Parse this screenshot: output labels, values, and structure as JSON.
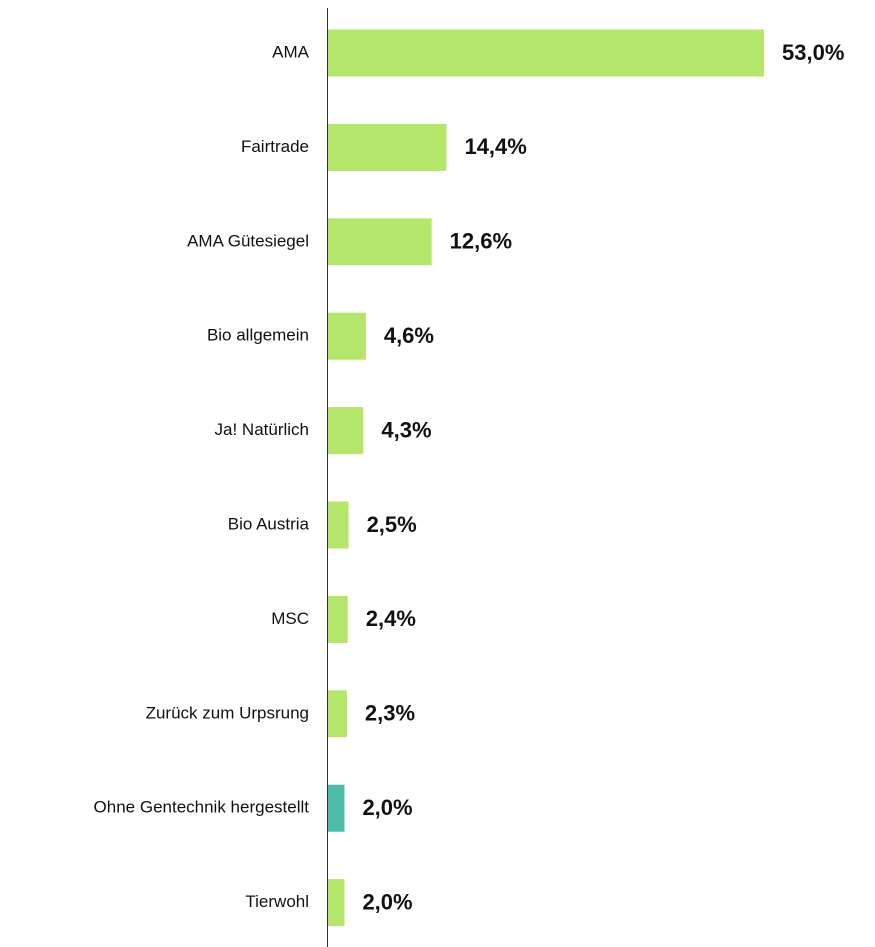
{
  "chart_data": {
    "type": "bar",
    "orientation": "horizontal",
    "categories": [
      "AMA",
      "Fairtrade",
      "AMA Gütesiegel",
      "Bio allgemein",
      "Ja! Natürlich",
      "Bio Austria",
      "MSC",
      "Zurück zum Urpsrung",
      "Ohne Gentechnik hergestellt",
      "Tierwohl"
    ],
    "values": [
      53.0,
      14.4,
      12.6,
      4.6,
      4.3,
      2.5,
      2.4,
      2.3,
      2.0,
      2.0
    ],
    "value_labels": [
      "53,0%",
      "14,4%",
      "12,6%",
      "4,6%",
      "4,3%",
      "2,5%",
      "2,4%",
      "2,3%",
      "2,0%",
      "2,0%"
    ],
    "colors": [
      "#b3e66a",
      "#b3e66a",
      "#b3e66a",
      "#b3e66a",
      "#b3e66a",
      "#b3e66a",
      "#b3e66a",
      "#b3e66a",
      "#4dbba6",
      "#b3e66a"
    ]
  }
}
